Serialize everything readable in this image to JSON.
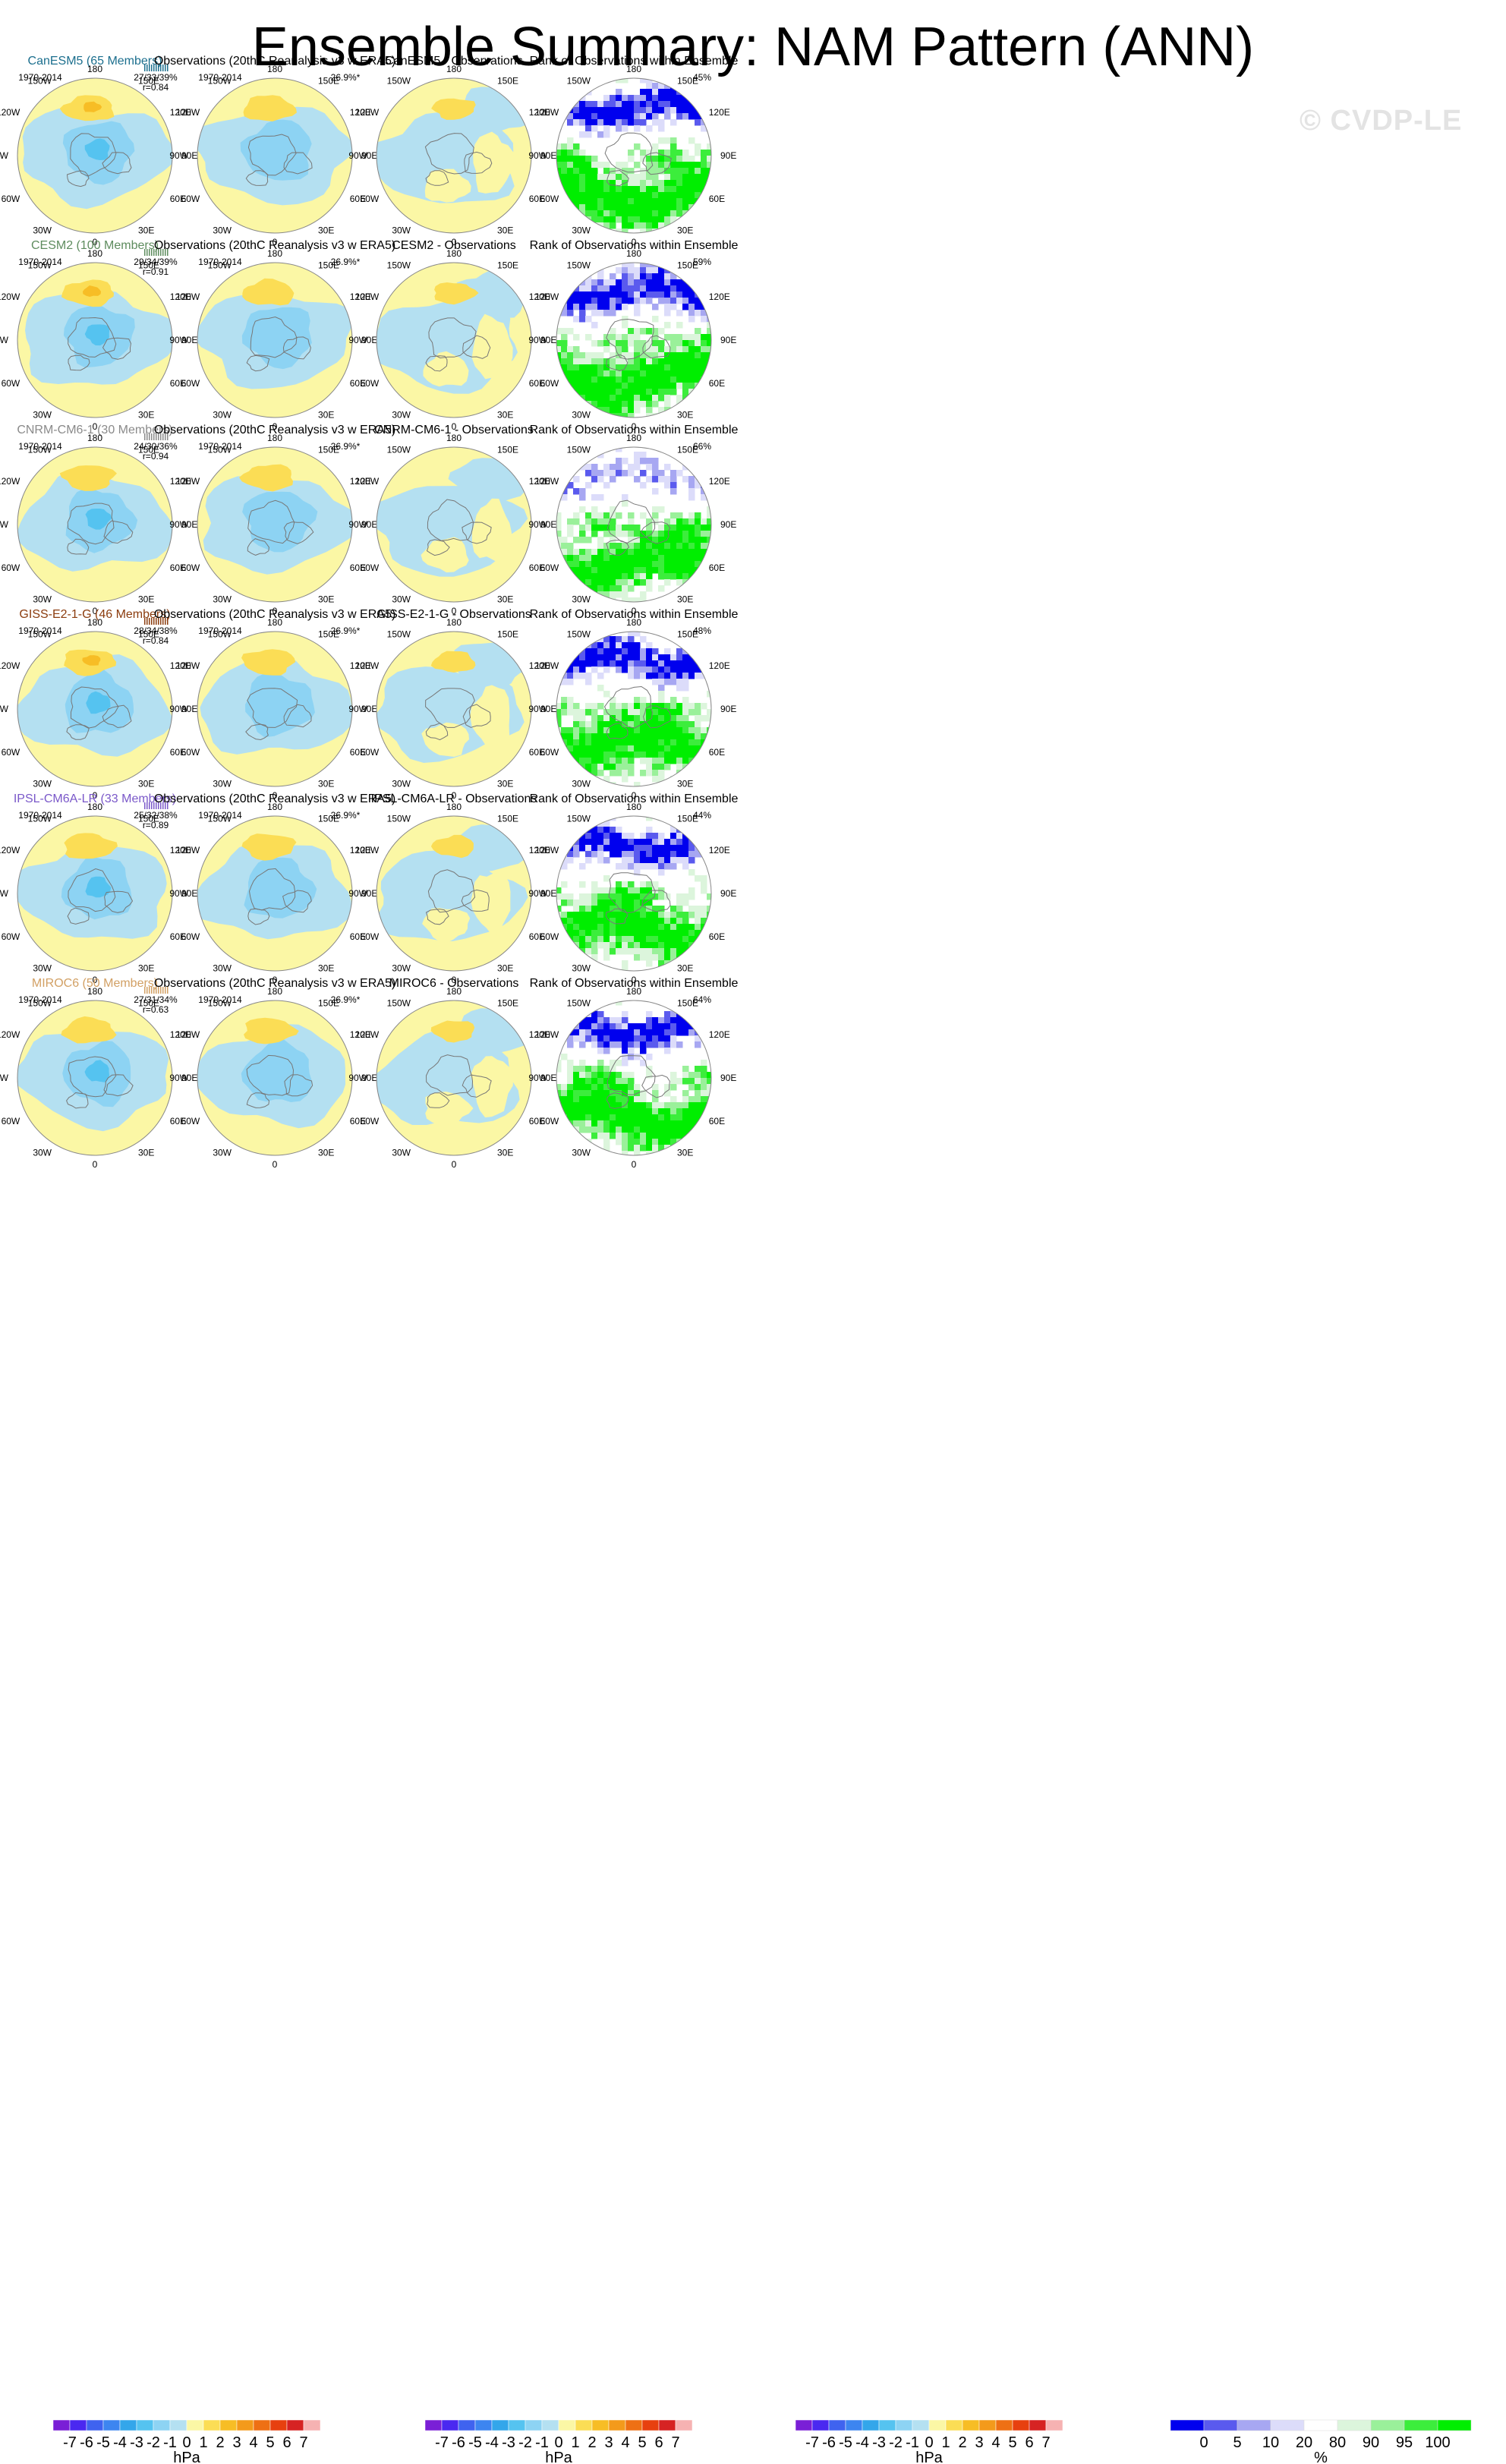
{
  "title": "Ensemble Summary: NAM Pattern (ANN)",
  "watermark": "© CVDP-LE",
  "period": "1970-2014",
  "obs_title": "Observations (20thC Reanalysis v3 w ERA5)",
  "rank_title": "Rank of Observations within Ensemble",
  "obs_pct": "26.9%*",
  "lon_labels": [
    "180",
    "150E",
    "120E",
    "90E",
    "60E",
    "30E",
    "0",
    "30W",
    "60W",
    "90W",
    "120W",
    "150W"
  ],
  "colors": {
    "model_title": [
      "#1c6f8e",
      "#5e8c5e",
      "#8a8a8a",
      "#8b3c0e",
      "#7a58c9",
      "#d2a064"
    ],
    "land": "#777777",
    "globe_edge": "#888888"
  },
  "colorbar_hpa": {
    "labels": [
      "-7",
      "-6",
      "-5",
      "-4",
      "-3",
      "-2",
      "-1",
      "0",
      "1",
      "2",
      "3",
      "4",
      "5",
      "6",
      "7"
    ],
    "unit": "hPa",
    "colors": [
      "#7a1fd6",
      "#4a28f0",
      "#3f63ef",
      "#3d85f0",
      "#33a6ea",
      "#55c3f0",
      "#8dd3f3",
      "#b4e0f1",
      "#fbf7a5",
      "#fbdd55",
      "#f7bd25",
      "#f39a1b",
      "#ee7014",
      "#e7400f",
      "#d62323",
      "#f6b2b2"
    ]
  },
  "colorbar_rank": {
    "labels": [
      "0",
      "5",
      "10",
      "20",
      "80",
      "90",
      "95",
      "100"
    ],
    "unit": "%",
    "colors": [
      "#0000ee",
      "#5a5aee",
      "#a7a7f2",
      "#dcdcfa",
      "#ffffff",
      "#dcf5dc",
      "#9af09a",
      "#3ced3c",
      "#00ee00"
    ]
  },
  "rows": [
    {
      "model": "CanESM5 (65 Members)",
      "diff_title": "CanESM5 - Observations",
      "stats": "27/33/39%",
      "r": "r=0.84",
      "rank_pct": "45%"
    },
    {
      "model": "CESM2 (100 Members)",
      "diff_title": "CESM2 - Observations",
      "stats": "29/34/39%",
      "r": "r=0.91",
      "rank_pct": "59%"
    },
    {
      "model": "CNRM-CM6-1 (30 Members)",
      "diff_title": "CNRM-CM6-1 - Observations",
      "stats": "24/30/36%",
      "r": "r=0.94",
      "rank_pct": "66%"
    },
    {
      "model": "GISS-E2-1-G (46 Members)",
      "diff_title": "GISS-E2-1-G - Observations",
      "stats": "28/34/38%",
      "r": "r=0.84",
      "rank_pct": "48%"
    },
    {
      "model": "IPSL-CM6A-LR (33 Members)",
      "diff_title": "IPSL-CM6A-LR - Observations",
      "stats": "25/32/38%",
      "r": "r=0.89",
      "rank_pct": "44%"
    },
    {
      "model": "MIROC6 (50 Members)",
      "diff_title": "MIROC6 - Observations",
      "stats": "27/31/34%",
      "r": "r=0.63",
      "rank_pct": "64%"
    }
  ],
  "chart_data": {
    "type": "heatmap",
    "title": "Ensemble Summary: NAM Pattern (ANN)",
    "projection": "north polar stereographic",
    "panels_per_row": [
      "model ensemble-mean NAM pattern",
      "observations",
      "model - observations",
      "rank of observations within ensemble"
    ],
    "units": [
      "hPa",
      "hPa",
      "hPa",
      "%"
    ],
    "color_levels_hpa": [
      -7,
      -6,
      -5,
      -4,
      -3,
      -2,
      -1,
      0,
      1,
      2,
      3,
      4,
      5,
      6,
      7
    ],
    "rank_levels_pct": [
      0,
      5,
      10,
      20,
      80,
      90,
      95,
      100
    ],
    "pattern_correlation": [
      {
        "model": "CanESM5",
        "r": 0.84
      },
      {
        "model": "CESM2",
        "r": 0.91
      },
      {
        "model": "CNRM-CM6-1",
        "r": 0.94
      },
      {
        "model": "GISS-E2-1-G",
        "r": 0.84
      },
      {
        "model": "IPSL-CM6A-LR",
        "r": 0.89
      },
      {
        "model": "MIROC6",
        "r": 0.63
      }
    ],
    "explained_variance_pct": [
      {
        "model": "CanESM5",
        "min": 27,
        "mean": 33,
        "max": 39,
        "rank_pct": 45
      },
      {
        "model": "CESM2",
        "min": 29,
        "mean": 34,
        "max": 39,
        "rank_pct": 59
      },
      {
        "model": "CNRM-CM6-1",
        "min": 24,
        "mean": 30,
        "max": 36,
        "rank_pct": 66
      },
      {
        "model": "GISS-E2-1-G",
        "min": 28,
        "mean": 34,
        "max": 38,
        "rank_pct": 48
      },
      {
        "model": "IPSL-CM6A-LR",
        "min": 25,
        "mean": 32,
        "max": 38,
        "rank_pct": 44
      },
      {
        "model": "MIROC6",
        "min": 27,
        "mean": 31,
        "max": 34,
        "rank_pct": 64
      }
    ],
    "observed_explained_variance_pct": 26.9
  }
}
